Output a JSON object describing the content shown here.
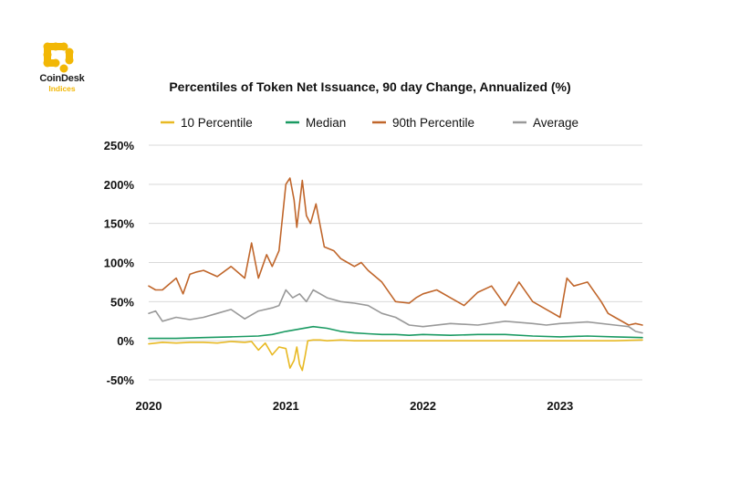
{
  "brand": {
    "name": "CoinDesk",
    "sub": "Indices",
    "accent": "#f2b705"
  },
  "chart_data": {
    "type": "line",
    "title": "Percentiles of Token Net Issuance, 90 day Change, Annualized (%)",
    "xlabel": "",
    "ylabel": "",
    "xlim": [
      2020.0,
      2023.6
    ],
    "ylim": [
      -50,
      250
    ],
    "y_ticks": [
      250,
      200,
      150,
      100,
      50,
      0,
      -50
    ],
    "y_tick_labels": [
      "250%",
      "200%",
      "150%",
      "100%",
      "50%",
      "0%",
      "-50%"
    ],
    "x_ticks": [
      2020,
      2021,
      2022,
      2023
    ],
    "x_tick_labels": [
      "2020",
      "2021",
      "2022",
      "2023"
    ],
    "grid": "horizontal",
    "legend_position": "top",
    "series": [
      {
        "name": "10 Percentile",
        "color": "#e8b923",
        "x": [
          2020.0,
          2020.1,
          2020.2,
          2020.3,
          2020.4,
          2020.5,
          2020.6,
          2020.7,
          2020.75,
          2020.8,
          2020.85,
          2020.9,
          2020.95,
          2021.0,
          2021.03,
          2021.06,
          2021.08,
          2021.1,
          2021.12,
          2021.14,
          2021.16,
          2021.2,
          2021.25,
          2021.3,
          2021.4,
          2021.5,
          2021.6,
          2021.7,
          2021.8,
          2021.9,
          2022.0,
          2022.2,
          2022.4,
          2022.6,
          2022.8,
          2023.0,
          2023.2,
          2023.4,
          2023.6
        ],
        "values": [
          -4,
          -2,
          -3,
          -2,
          -2,
          -3,
          -1,
          -2,
          -1,
          -12,
          -3,
          -18,
          -8,
          -10,
          -35,
          -25,
          -8,
          -30,
          -38,
          -20,
          0,
          1,
          1,
          0,
          1,
          0,
          0,
          0,
          0,
          0,
          0,
          0,
          0,
          0,
          0,
          0,
          0,
          0,
          1
        ]
      },
      {
        "name": "Median",
        "color": "#1a9a62",
        "x": [
          2020.0,
          2020.2,
          2020.4,
          2020.6,
          2020.8,
          2020.9,
          2021.0,
          2021.1,
          2021.2,
          2021.3,
          2021.4,
          2021.5,
          2021.6,
          2021.7,
          2021.8,
          2021.9,
          2022.0,
          2022.2,
          2022.4,
          2022.6,
          2022.8,
          2023.0,
          2023.2,
          2023.4,
          2023.6
        ],
        "values": [
          3,
          3,
          4,
          5,
          6,
          8,
          12,
          15,
          18,
          16,
          12,
          10,
          9,
          8,
          8,
          7,
          8,
          7,
          8,
          8,
          6,
          5,
          6,
          5,
          4
        ]
      },
      {
        "name": "90th Percentile",
        "color": "#c0662b",
        "x": [
          2020.0,
          2020.05,
          2020.1,
          2020.2,
          2020.25,
          2020.3,
          2020.35,
          2020.4,
          2020.5,
          2020.6,
          2020.7,
          2020.75,
          2020.8,
          2020.83,
          2020.86,
          2020.9,
          2020.95,
          2021.0,
          2021.03,
          2021.06,
          2021.08,
          2021.12,
          2021.15,
          2021.18,
          2021.22,
          2021.28,
          2021.35,
          2021.4,
          2021.45,
          2021.5,
          2021.55,
          2021.6,
          2021.7,
          2021.8,
          2021.9,
          2021.95,
          2022.0,
          2022.1,
          2022.2,
          2022.3,
          2022.4,
          2022.5,
          2022.6,
          2022.7,
          2022.8,
          2022.9,
          2022.95,
          2023.0,
          2023.05,
          2023.1,
          2023.2,
          2023.3,
          2023.35,
          2023.4,
          2023.5,
          2023.55,
          2023.6
        ],
        "values": [
          70,
          65,
          65,
          80,
          60,
          85,
          88,
          90,
          82,
          95,
          80,
          125,
          80,
          95,
          110,
          95,
          115,
          200,
          208,
          180,
          145,
          205,
          160,
          150,
          175,
          120,
          115,
          105,
          100,
          95,
          100,
          90,
          75,
          50,
          48,
          55,
          60,
          65,
          55,
          45,
          62,
          70,
          45,
          75,
          50,
          40,
          35,
          30,
          80,
          70,
          75,
          50,
          35,
          30,
          20,
          22,
          20
        ]
      },
      {
        "name": "Average",
        "color": "#999999",
        "x": [
          2020.0,
          2020.05,
          2020.1,
          2020.2,
          2020.3,
          2020.4,
          2020.5,
          2020.6,
          2020.7,
          2020.8,
          2020.9,
          2020.95,
          2021.0,
          2021.05,
          2021.1,
          2021.15,
          2021.2,
          2021.3,
          2021.4,
          2021.5,
          2021.6,
          2021.7,
          2021.8,
          2021.9,
          2022.0,
          2022.2,
          2022.4,
          2022.6,
          2022.8,
          2022.9,
          2023.0,
          2023.2,
          2023.4,
          2023.5,
          2023.55,
          2023.6
        ],
        "values": [
          35,
          38,
          25,
          30,
          27,
          30,
          35,
          40,
          28,
          38,
          42,
          45,
          65,
          55,
          60,
          50,
          65,
          55,
          50,
          48,
          45,
          35,
          30,
          20,
          18,
          22,
          20,
          25,
          22,
          20,
          22,
          24,
          20,
          18,
          12,
          10
        ]
      }
    ]
  }
}
